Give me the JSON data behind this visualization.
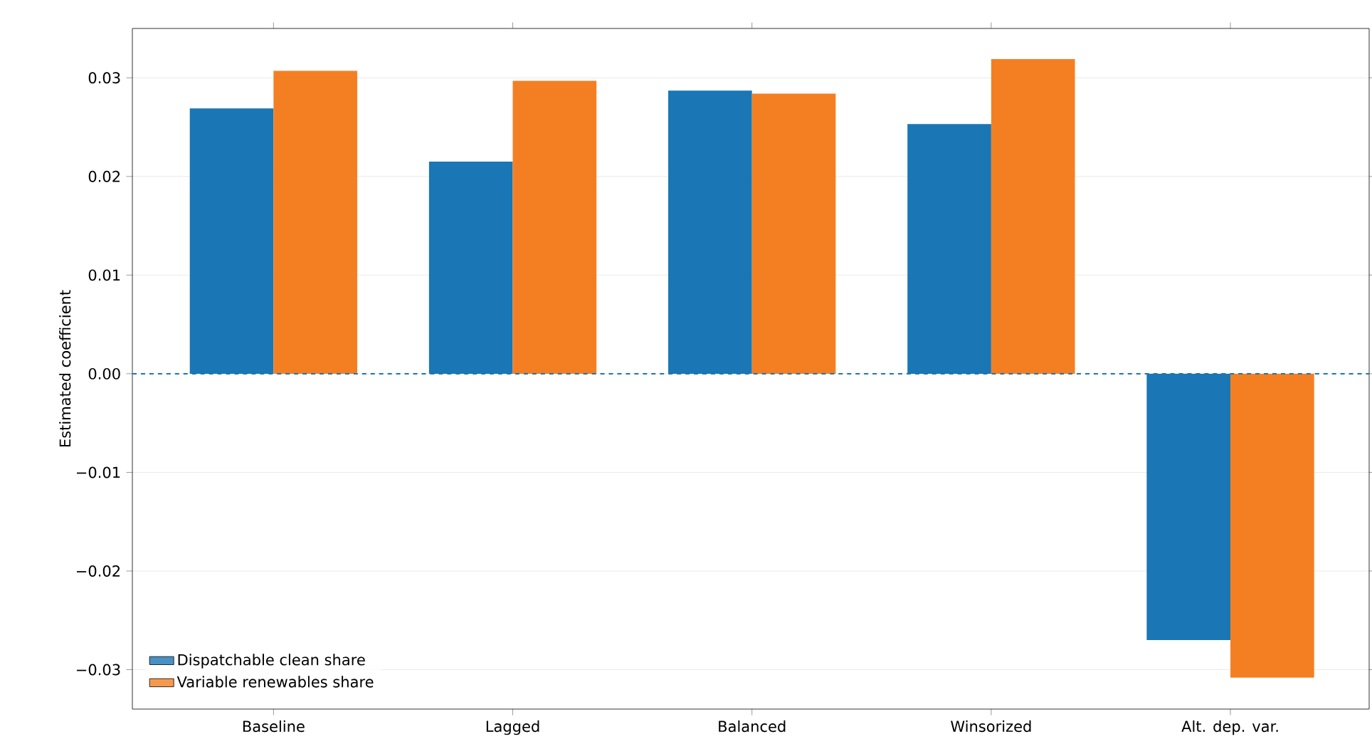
{
  "chart_data": {
    "type": "bar",
    "ylabel": "Estimated coefficient",
    "categories": [
      "Baseline",
      "Lagged",
      "Balanced",
      "Winsorized",
      "Alt. dep. var."
    ],
    "series": [
      {
        "name": "Dispatchable clean share",
        "color": "#1a76b4",
        "values": [
          0.0269,
          0.0215,
          0.0287,
          0.0253,
          -0.027
        ]
      },
      {
        "name": "Variable renewables share",
        "color": "#f47f22",
        "values": [
          0.0307,
          0.0297,
          0.0284,
          0.0319,
          -0.0308
        ]
      }
    ],
    "ylim": [
      -0.034,
      0.035
    ],
    "yticks": [
      {
        "value": -0.03,
        "label": "−0.03"
      },
      {
        "value": -0.02,
        "label": "−0.02"
      },
      {
        "value": -0.01,
        "label": "−0.01"
      },
      {
        "value": 0,
        "label": "0.00"
      },
      {
        "value": 0.01,
        "label": "0.01"
      },
      {
        "value": 0.02,
        "label": "0.02"
      },
      {
        "value": 0.03,
        "label": "0.03"
      }
    ],
    "grid": "y",
    "legend": "bottom left",
    "ref_lines": [
      {
        "axis": "y",
        "value": 0,
        "color": "#1a76b4",
        "line_style": "dashed"
      }
    ]
  }
}
